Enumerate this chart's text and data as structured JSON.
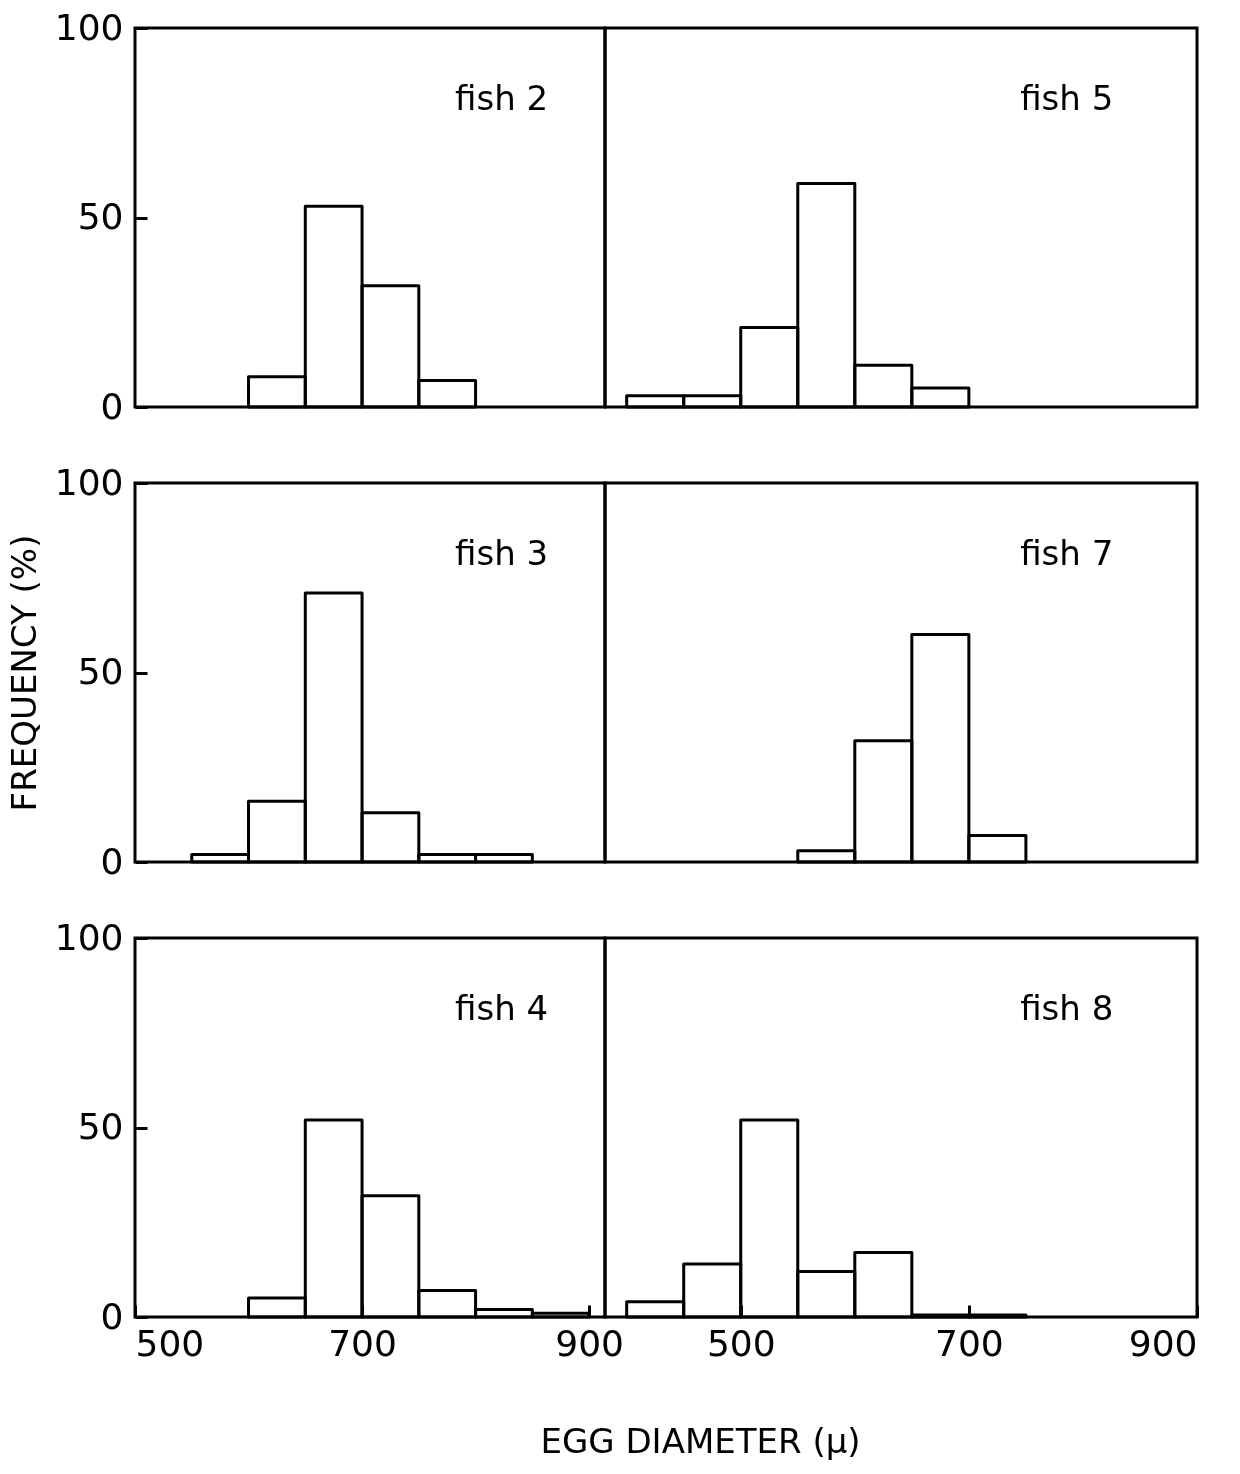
{
  "chart_data": [
    {
      "type": "histogram",
      "annotations": [
        "fish 2"
      ],
      "bins": [
        600,
        650,
        700,
        750,
        800
      ],
      "values": [
        8,
        53,
        32,
        7
      ],
      "color": "#000000",
      "xlim": [
        500,
        914
      ],
      "xticks": [
        500,
        700,
        900
      ],
      "ylim": [
        0,
        100
      ],
      "yticks": [
        0,
        50,
        100
      ],
      "tick_labels": "y"
    },
    {
      "type": "histogram",
      "annotations": [
        "fish 5"
      ],
      "bins": [
        400,
        450,
        500,
        550,
        600,
        650,
        700
      ],
      "values": [
        3,
        3,
        21,
        59,
        11,
        5
      ],
      "color": "#000000",
      "xlim": [
        381,
        900
      ],
      "xticks": [
        500,
        700,
        900
      ],
      "ylim": [
        0,
        100
      ],
      "yticks": [
        0,
        50,
        100
      ],
      "tick_labels": false
    },
    {
      "type": "histogram",
      "ylabel": "FREQUENCY (%)",
      "annotations": [
        "fish 3"
      ],
      "bins": [
        550,
        600,
        650,
        700,
        750,
        800,
        850
      ],
      "values": [
        2,
        16,
        71,
        13,
        2,
        2
      ],
      "color": "#000000",
      "xlim": [
        500,
        914
      ],
      "xticks": [
        500,
        700,
        900
      ],
      "ylim": [
        0,
        100
      ],
      "yticks": [
        0,
        50,
        100
      ],
      "tick_labels": "y"
    },
    {
      "type": "histogram",
      "annotations": [
        "fish 7"
      ],
      "bins": [
        550,
        600,
        650,
        700,
        750
      ],
      "values": [
        3,
        32,
        60,
        7
      ],
      "color": "#000000",
      "xlim": [
        381,
        900
      ],
      "xticks": [
        500,
        700,
        900
      ],
      "ylim": [
        0,
        100
      ],
      "yticks": [
        0,
        50,
        100
      ],
      "tick_labels": false
    },
    {
      "type": "histogram",
      "annotations": [
        "fish 4"
      ],
      "bins": [
        600,
        650,
        700,
        750,
        800,
        850,
        900
      ],
      "values": [
        5,
        52,
        32,
        7,
        2,
        1
      ],
      "color": "#000000",
      "xlim": [
        500,
        914
      ],
      "xticks": [
        500,
        700,
        900
      ],
      "ylim": [
        0,
        100
      ],
      "yticks": [
        0,
        50,
        100
      ]
    },
    {
      "type": "histogram",
      "xlabel": "EGG DIAMETER (μ)",
      "annotations": [
        "fish 8"
      ],
      "bins": [
        400,
        450,
        500,
        550,
        600,
        650,
        700,
        750
      ],
      "values": [
        4,
        14,
        52,
        12,
        17,
        0.5,
        0.5
      ],
      "color": "#000000",
      "xlim": [
        381,
        900
      ],
      "xticks": [
        500,
        700,
        900
      ],
      "ylim": [
        0,
        100
      ],
      "yticks": [
        0,
        50,
        100
      ],
      "tick_labels": "x"
    }
  ]
}
